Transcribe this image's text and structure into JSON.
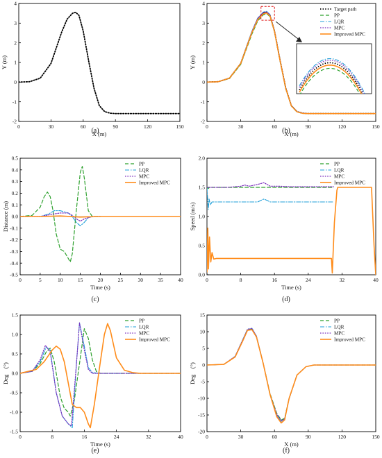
{
  "figure": {
    "colors": {
      "target": "#000000",
      "pp": "#2ca02c",
      "lqr": "#1f9fd8",
      "mpc": "#7b2fbe",
      "improved": "#ff8c1a"
    }
  },
  "chart_data": [
    {
      "panel": "(a)",
      "type": "line",
      "xlabel": "X (m)",
      "ylabel": "Y (m)",
      "xlim": [
        0,
        150
      ],
      "ylim": [
        -2,
        4
      ],
      "xticks": [
        0,
        30,
        60,
        90,
        120,
        150
      ],
      "yticks": [
        -2,
        -1,
        0,
        1,
        2,
        3,
        4
      ],
      "series": [
        {
          "key": "target",
          "style": "dotted",
          "x": [
            0,
            10,
            20,
            30,
            40,
            45,
            50,
            53,
            56,
            60,
            65,
            70,
            75,
            80,
            85,
            90,
            100,
            120,
            150
          ],
          "y": [
            0,
            0.02,
            0.2,
            0.95,
            2.55,
            3.2,
            3.5,
            3.55,
            3.4,
            2.6,
            1.1,
            -0.3,
            -1.2,
            -1.5,
            -1.58,
            -1.6,
            -1.6,
            -1.6,
            -1.6
          ]
        }
      ]
    },
    {
      "panel": "(b)",
      "type": "line",
      "xlabel": "X (m)",
      "ylabel": "Y (m)",
      "xlim": [
        0,
        150
      ],
      "ylim": [
        -2,
        4
      ],
      "xticks": [
        0,
        30,
        60,
        90,
        120,
        150
      ],
      "yticks": [
        -2,
        -1,
        0,
        1,
        2,
        3,
        4
      ],
      "legend": "top-right",
      "inset": "zoom of peak region",
      "series": [
        {
          "name": "Target path",
          "key": "target",
          "style": "dotted",
          "x": [
            0,
            10,
            20,
            30,
            40,
            45,
            50,
            53,
            56,
            60,
            65,
            70,
            75,
            80,
            85,
            90,
            100,
            120,
            150
          ],
          "y": [
            0,
            0.02,
            0.2,
            0.95,
            2.55,
            3.2,
            3.5,
            3.55,
            3.4,
            2.6,
            1.1,
            -0.3,
            -1.2,
            -1.5,
            -1.58,
            -1.6,
            -1.6,
            -1.6,
            -1.6
          ]
        },
        {
          "name": "PP",
          "key": "pp",
          "style": "dashed",
          "x": [
            0,
            10,
            20,
            30,
            40,
            45,
            50,
            53,
            56,
            60,
            65,
            70,
            75,
            80,
            85,
            90,
            100,
            120,
            150
          ],
          "y": [
            0,
            0.02,
            0.18,
            0.9,
            2.45,
            3.1,
            3.42,
            3.48,
            3.33,
            2.55,
            1.05,
            -0.35,
            -1.22,
            -1.52,
            -1.59,
            -1.6,
            -1.6,
            -1.6,
            -1.6
          ]
        },
        {
          "name": "LQR",
          "key": "lqr",
          "style": "dashdot",
          "x": [
            0,
            10,
            20,
            30,
            40,
            45,
            50,
            53,
            56,
            60,
            65,
            70,
            75,
            80,
            85,
            90,
            100,
            120,
            150
          ],
          "y": [
            0,
            0.02,
            0.21,
            0.97,
            2.6,
            3.25,
            3.56,
            3.6,
            3.44,
            2.62,
            1.1,
            -0.3,
            -1.2,
            -1.5,
            -1.58,
            -1.6,
            -1.6,
            -1.6,
            -1.6
          ]
        },
        {
          "name": "MPC",
          "key": "mpc",
          "style": "dotted2",
          "x": [
            0,
            10,
            20,
            30,
            40,
            45,
            50,
            53,
            56,
            60,
            65,
            70,
            75,
            80,
            85,
            90,
            100,
            120,
            150
          ],
          "y": [
            0,
            0.02,
            0.2,
            0.96,
            2.58,
            3.23,
            3.54,
            3.58,
            3.42,
            2.61,
            1.1,
            -0.3,
            -1.2,
            -1.5,
            -1.58,
            -1.6,
            -1.6,
            -1.6,
            -1.6
          ]
        },
        {
          "name": "Improved MPC",
          "key": "improved",
          "style": "solid",
          "x": [
            0,
            10,
            20,
            30,
            40,
            45,
            50,
            53,
            56,
            60,
            65,
            70,
            75,
            80,
            85,
            90,
            100,
            120,
            150
          ],
          "y": [
            0,
            0.02,
            0.2,
            0.95,
            2.53,
            3.17,
            3.47,
            3.52,
            3.37,
            2.58,
            1.08,
            -0.32,
            -1.21,
            -1.51,
            -1.59,
            -1.6,
            -1.6,
            -1.6,
            -1.6
          ]
        }
      ]
    },
    {
      "panel": "(c)",
      "type": "line",
      "xlabel": "Time (s)",
      "ylabel": "Distance (m)",
      "xlim": [
        0,
        40
      ],
      "ylim": [
        -0.5,
        0.5
      ],
      "xticks": [
        0,
        5,
        10,
        15,
        20,
        25,
        30,
        35,
        40
      ],
      "yticks": [
        -0.5,
        -0.4,
        -0.3,
        -0.2,
        -0.1,
        0.0,
        0.1,
        0.2,
        0.3,
        0.4,
        0.5
      ],
      "legend": "top-right",
      "series": [
        {
          "name": "PP",
          "key": "pp",
          "style": "dashed",
          "x": [
            0,
            3,
            5,
            6,
            6.8,
            7.5,
            8.2,
            9,
            10,
            11,
            12,
            12.5,
            13,
            14,
            15,
            15.5,
            16,
            17,
            18,
            19,
            20
          ],
          "y": [
            0,
            0.01,
            0.08,
            0.17,
            0.21,
            0.17,
            0.05,
            -0.15,
            -0.28,
            -0.3,
            -0.36,
            -0.39,
            -0.32,
            0.05,
            0.38,
            0.43,
            0.33,
            0.05,
            0.0,
            0.0,
            0.0
          ]
        },
        {
          "name": "LQR",
          "key": "lqr",
          "style": "dashdot",
          "x": [
            0,
            5,
            7,
            8.5,
            10,
            12,
            13,
            14,
            15,
            16,
            17,
            18,
            20
          ],
          "y": [
            0,
            0.0,
            0.02,
            0.05,
            0.05,
            0.03,
            0.0,
            -0.05,
            -0.08,
            -0.05,
            -0.01,
            0.0,
            0.0
          ]
        },
        {
          "name": "MPC",
          "key": "mpc",
          "style": "dotted2",
          "x": [
            0,
            5,
            8,
            10,
            12,
            13,
            14,
            15,
            16,
            18,
            20
          ],
          "y": [
            0,
            0.0,
            0.02,
            0.03,
            0.03,
            0.01,
            -0.02,
            -0.04,
            -0.02,
            0.0,
            0.0
          ]
        },
        {
          "name": "Improved MPC",
          "key": "improved",
          "style": "solid",
          "x": [
            0,
            5,
            10,
            15,
            20,
            25,
            30,
            35,
            40
          ],
          "y": [
            0,
            0,
            0.005,
            -0.005,
            0,
            0,
            0,
            0,
            0
          ]
        }
      ]
    },
    {
      "panel": "(d)",
      "type": "line",
      "xlabel": "Time (s)",
      "ylabel": "Speed (m/s)",
      "xlim": [
        0,
        40
      ],
      "ylim": [
        0,
        2
      ],
      "xticks": [
        0,
        8,
        16,
        24,
        32,
        40
      ],
      "yticks": [
        0.0,
        0.5,
        1.0,
        1.5,
        2.0
      ],
      "legend": "top-right",
      "series": [
        {
          "name": "PP",
          "key": "pp",
          "style": "dashed",
          "x": [
            0,
            0.3,
            0.6,
            1,
            5,
            10,
            15,
            20,
            25,
            30
          ],
          "y": [
            1.5,
            1.48,
            1.5,
            1.5,
            1.5,
            1.5,
            1.5,
            1.5,
            1.5,
            1.5
          ]
        },
        {
          "name": "LQR",
          "key": "lqr",
          "style": "dashdot",
          "x": [
            0,
            0.3,
            0.5,
            0.8,
            1.2,
            5,
            10,
            12,
            13.5,
            15,
            20,
            25,
            30
          ],
          "y": [
            1.5,
            1.12,
            1.3,
            1.2,
            1.25,
            1.25,
            1.25,
            1.25,
            1.3,
            1.25,
            1.25,
            1.25,
            1.25
          ]
        },
        {
          "name": "MPC",
          "key": "mpc",
          "style": "dotted2",
          "x": [
            0,
            1,
            5,
            8,
            9,
            10,
            12,
            13.5,
            15,
            17,
            20,
            25,
            30
          ],
          "y": [
            1.5,
            1.5,
            1.5,
            1.52,
            1.54,
            1.52,
            1.55,
            1.58,
            1.52,
            1.52,
            1.51,
            1.51,
            1.51
          ]
        },
        {
          "name": "Improved MPC",
          "key": "improved",
          "style": "solid",
          "x": [
            0,
            0.2,
            0.35,
            0.6,
            0.9,
            1.2,
            1.6,
            2.2,
            5,
            10,
            20,
            29.5,
            29.7,
            30.2,
            30.8,
            31,
            39,
            39.6,
            40
          ],
          "y": [
            0.05,
            0.8,
            0.1,
            0.65,
            0.22,
            0.38,
            0.27,
            0.28,
            0.28,
            0.28,
            0.28,
            0.28,
            0.03,
            0.9,
            1.45,
            1.5,
            1.5,
            0.5,
            0.0
          ]
        }
      ]
    },
    {
      "panel": "(e)",
      "type": "line",
      "xlabel": "Time (s)",
      "ylabel": "Deg　(°)",
      "xlim": [
        0,
        40
      ],
      "ylim": [
        -1.5,
        1.5
      ],
      "xticks": [
        0,
        8,
        16,
        24,
        32,
        40
      ],
      "yticks": [
        -1.5,
        -1.0,
        -0.5,
        0.0,
        0.5,
        1.0,
        1.5
      ],
      "legend": "top-right",
      "series": [
        {
          "name": "PP",
          "key": "pp",
          "style": "dashed",
          "x": [
            0,
            3,
            5,
            6.5,
            7.5,
            8.5,
            10,
            11,
            12,
            12.5,
            13.5,
            15,
            16,
            17,
            18,
            19,
            20,
            25,
            40
          ],
          "y": [
            0,
            0.05,
            0.25,
            0.55,
            0.65,
            0.3,
            -0.6,
            -0.9,
            -1.0,
            -1.1,
            -0.7,
            0.4,
            1.15,
            0.9,
            0.35,
            0.05,
            0.0,
            0.0,
            0.0
          ]
        },
        {
          "name": "LQR",
          "key": "lqr",
          "style": "dashdot",
          "x": [
            0,
            3,
            5,
            6.5,
            7.5,
            9,
            10.5,
            12,
            13,
            14,
            14.8,
            16,
            17,
            18,
            20,
            40
          ],
          "y": [
            0,
            0.05,
            0.3,
            0.68,
            0.6,
            -0.5,
            -1.1,
            -1.3,
            -1.4,
            0.2,
            1.3,
            0.7,
            0.15,
            0.02,
            0.0,
            0.0
          ]
        },
        {
          "name": "MPC",
          "key": "mpc",
          "style": "dotted2",
          "x": [
            0,
            3,
            5,
            6.3,
            7.5,
            9,
            10.5,
            12,
            12.8,
            14,
            14.8,
            16,
            17,
            18,
            20,
            40
          ],
          "y": [
            0,
            0.05,
            0.35,
            0.72,
            0.55,
            -0.5,
            -1.1,
            -1.3,
            -1.35,
            0.2,
            1.3,
            0.6,
            0.1,
            0.0,
            0.0,
            0.0
          ]
        },
        {
          "name": "Improved MPC",
          "key": "improved",
          "style": "solid",
          "x": [
            0,
            4,
            6,
            8,
            9,
            10,
            11,
            12,
            13,
            14,
            15,
            16,
            17,
            17.5,
            18.5,
            20,
            21,
            21.8,
            22.5,
            24,
            26,
            28,
            30,
            40
          ],
          "y": [
            0,
            0.1,
            0.3,
            0.6,
            0.7,
            0.62,
            0.3,
            -0.25,
            -0.8,
            -0.88,
            -0.88,
            -1.0,
            -1.3,
            -1.4,
            -0.8,
            0.3,
            1.0,
            1.28,
            1.1,
            0.4,
            0.08,
            0.02,
            0.0,
            0.0
          ]
        }
      ]
    },
    {
      "panel": "(f)",
      "type": "line",
      "xlabel": "X (m)",
      "ylabel": "Deg　(°)",
      "xlim": [
        0,
        150
      ],
      "ylim": [
        -20,
        15
      ],
      "xticks": [
        0,
        30,
        60,
        90,
        120,
        150
      ],
      "yticks": [
        -20,
        -15,
        -10,
        -5,
        0,
        5,
        10,
        15
      ],
      "legend": "top-right",
      "series": [
        {
          "name": "PP",
          "key": "pp",
          "style": "dashed",
          "x": [
            0,
            15,
            25,
            32,
            36,
            40,
            44,
            50,
            56,
            62,
            66,
            69,
            73,
            80,
            88,
            95,
            150
          ],
          "y": [
            0,
            0.2,
            2.5,
            7.5,
            10.5,
            10.8,
            8.5,
            0.5,
            -8.5,
            -14.5,
            -16.5,
            -16.0,
            -10.0,
            -3.0,
            -0.5,
            0,
            0
          ]
        },
        {
          "name": "LQR",
          "key": "lqr",
          "style": "dashdot",
          "x": [
            0,
            15,
            25,
            32,
            36,
            40,
            44,
            50,
            56,
            62,
            66,
            69,
            73,
            80,
            88,
            95,
            150
          ],
          "y": [
            0,
            0.2,
            2.6,
            7.8,
            10.8,
            11.0,
            8.7,
            0.5,
            -8.8,
            -15.0,
            -17.0,
            -16.3,
            -10.2,
            -3.0,
            -0.5,
            0,
            0
          ]
        },
        {
          "name": "MPC",
          "key": "mpc",
          "style": "dotted2",
          "x": [
            0,
            15,
            25,
            32,
            36,
            40,
            44,
            50,
            56,
            62,
            66,
            69,
            73,
            80,
            88,
            95,
            150
          ],
          "y": [
            0,
            0.2,
            2.6,
            7.7,
            10.7,
            11.0,
            8.6,
            0.5,
            -8.7,
            -14.8,
            -16.8,
            -16.2,
            -10.1,
            -3.0,
            -0.5,
            0,
            0
          ]
        },
        {
          "name": "Improved MPC",
          "key": "improved",
          "style": "solid",
          "x": [
            0,
            15,
            25,
            32,
            36,
            40,
            44,
            50,
            56,
            62,
            66,
            69,
            73,
            80,
            88,
            95,
            150
          ],
          "y": [
            0,
            0.2,
            2.4,
            7.4,
            10.4,
            10.6,
            8.4,
            0.4,
            -8.8,
            -15.5,
            -17.4,
            -16.5,
            -10.0,
            -3.0,
            -0.5,
            0,
            0
          ]
        }
      ]
    }
  ]
}
